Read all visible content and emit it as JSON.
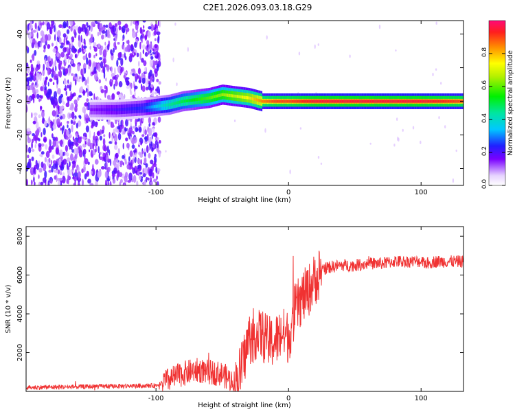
{
  "title": "C2E1.2026.093.03.18.G29",
  "colors": {
    "snr_line": "#f03232",
    "spectral_center": "#e6323c",
    "frame": "#000000"
  },
  "chart_data": [
    {
      "type": "heatmap",
      "title": "C2E1.2026.093.03.18.G29",
      "xlabel": "Height of straight line (km)",
      "ylabel": "Frequency (Hz)",
      "xlim": [
        -198,
        132
      ],
      "ylim": [
        -50,
        48
      ],
      "xticks": [
        -100,
        0,
        100
      ],
      "xtick_labels": [
        "-100",
        "0",
        "100"
      ],
      "yticks": [
        -40,
        -20,
        0,
        20,
        40
      ],
      "ytick_labels": [
        "-40",
        "-20",
        "0",
        "20",
        "40"
      ],
      "grid": false,
      "noise_region_x": [
        -198,
        -100
      ],
      "ridge": {
        "x": [
          -150,
          -130,
          -110,
          -100,
          -90,
          -80,
          -70,
          -60,
          -50,
          -40,
          -30,
          -20,
          -10,
          0,
          20,
          40,
          60,
          80,
          100,
          132
        ],
        "frequency_hz": [
          -5,
          -5,
          -4,
          -3,
          -2,
          0,
          1,
          2,
          4,
          3,
          2,
          0,
          0,
          0,
          0,
          0,
          0,
          0,
          0,
          0
        ],
        "amplitude": [
          0.15,
          0.2,
          0.25,
          0.35,
          0.45,
          0.5,
          0.55,
          0.6,
          0.65,
          0.7,
          0.75,
          0.85,
          0.9,
          0.9,
          0.95,
          0.95,
          0.95,
          0.95,
          0.95,
          0.9
        ]
      },
      "colorbar": {
        "label": "Normalized spectral amplitude",
        "range": [
          0.0,
          1.0
        ],
        "ticks": [
          0.0,
          0.2,
          0.4,
          0.6,
          0.8
        ],
        "tick_labels": [
          "0.0",
          "0.2",
          "0.4",
          "0.6",
          "0.8"
        ]
      }
    },
    {
      "type": "line",
      "xlabel": "Height of straight line (km)",
      "ylabel": "SNR (10 * v/v)",
      "xlim": [
        -198,
        132
      ],
      "ylim": [
        0,
        8500
      ],
      "xticks": [
        -100,
        0,
        100
      ],
      "xtick_labels": [
        "-100",
        "0",
        "100"
      ],
      "yticks": [
        2000,
        4000,
        6000,
        8000
      ],
      "ytick_labels": [
        "2000",
        "4000",
        "6000",
        "8000"
      ],
      "grid": false,
      "series": [
        {
          "name": "SNR",
          "x": [
            -198,
            -150,
            -100,
            -90,
            -80,
            -70,
            -60,
            -50,
            -40,
            -35,
            -30,
            -25,
            -20,
            -15,
            -10,
            -5,
            0,
            5,
            10,
            15,
            20,
            25,
            30,
            40,
            50,
            60,
            70,
            80,
            90,
            100,
            105,
            110,
            120,
            132
          ],
          "y": [
            200,
            250,
            300,
            600,
            900,
            1100,
            1000,
            900,
            400,
            1300,
            2700,
            3000,
            2900,
            2500,
            2600,
            3000,
            2800,
            4200,
            4800,
            5200,
            5800,
            6300,
            6400,
            6500,
            6500,
            6600,
            6600,
            6700,
            6700,
            6700,
            6600,
            6700,
            6700,
            6700
          ]
        }
      ]
    }
  ]
}
